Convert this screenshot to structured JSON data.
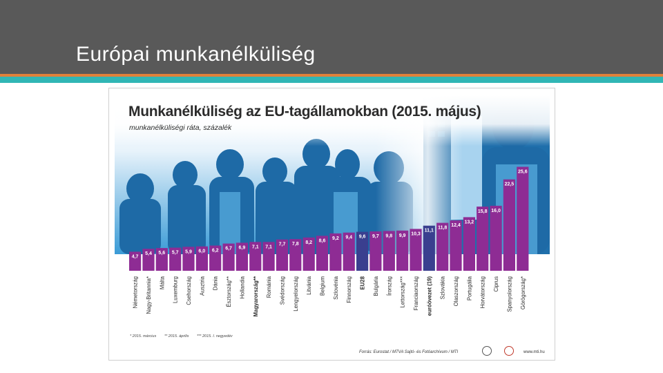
{
  "slide": {
    "title": "Európai munkanélküliség"
  },
  "colors": {
    "bar": "#8e2c94",
    "bar_highlight": "#3a3f8f",
    "header": "#595959",
    "stripe_orange": "#e0813a",
    "stripe_teal": "#31b6b5"
  },
  "chart_data": {
    "type": "bar",
    "title": "Munkanélküliség az EU-tagállamokban (2015. május)",
    "subtitle": "munkanélküliségi ráta, százalék",
    "xlabel": "",
    "ylabel": "",
    "ylim": [
      0,
      26
    ],
    "grid": false,
    "categories": [
      "Németország",
      "Nagy-Britannia*",
      "Málta",
      "Luxemburg",
      "Csehország",
      "Ausztria",
      "Dánia",
      "Észtország**",
      "Hollandia",
      "Magyarország**",
      "Románia",
      "Svédország",
      "Lengyelország",
      "Litvánia",
      "Belgium",
      "Szlovénia",
      "Finnország",
      "EU28",
      "Bulgária",
      "Írország",
      "Lettország***",
      "Franciaország",
      "euróövezet (19)",
      "Szlovákia",
      "Olaszország",
      "Portugália",
      "Horvátország",
      "Ciprus",
      "Spanyolország",
      "Görögország*"
    ],
    "values": [
      4.7,
      5.4,
      5.6,
      5.7,
      5.9,
      6.0,
      6.2,
      6.7,
      6.9,
      7.1,
      7.1,
      7.7,
      7.8,
      8.2,
      8.6,
      9.2,
      9.4,
      9.6,
      9.7,
      9.8,
      9.9,
      10.3,
      11.1,
      11.8,
      12.4,
      13.2,
      15.8,
      16.0,
      22.5,
      25.6
    ],
    "value_labels": [
      "4,7",
      "5,4",
      "5,6",
      "5,7",
      "5,9",
      "6,0",
      "6,2",
      "6,7",
      "6,9",
      "7,1",
      "7,1",
      "7,7",
      "7,8",
      "8,2",
      "8,6",
      "9,2",
      "9,4",
      "9,6",
      "9,7",
      "9,8",
      "9,9",
      "10,3",
      "11,1",
      "11,8",
      "12,4",
      "13,2",
      "15,8",
      "16,0",
      "22,5",
      "25,6"
    ],
    "highlighted": [
      "Magyarország**",
      "EU28",
      "euróövezet (19)"
    ],
    "footnotes": [
      "* 2015. március",
      "** 2015. április",
      "*** 2015. I. negyedév"
    ]
  },
  "source": "Forrás: Eurostat / MTVA Sajtó- és Fotóarchívum / MTI",
  "website": "www.mti.hu",
  "logos": {
    "left": "mti-logo-icon",
    "right": "target-logo-icon"
  }
}
